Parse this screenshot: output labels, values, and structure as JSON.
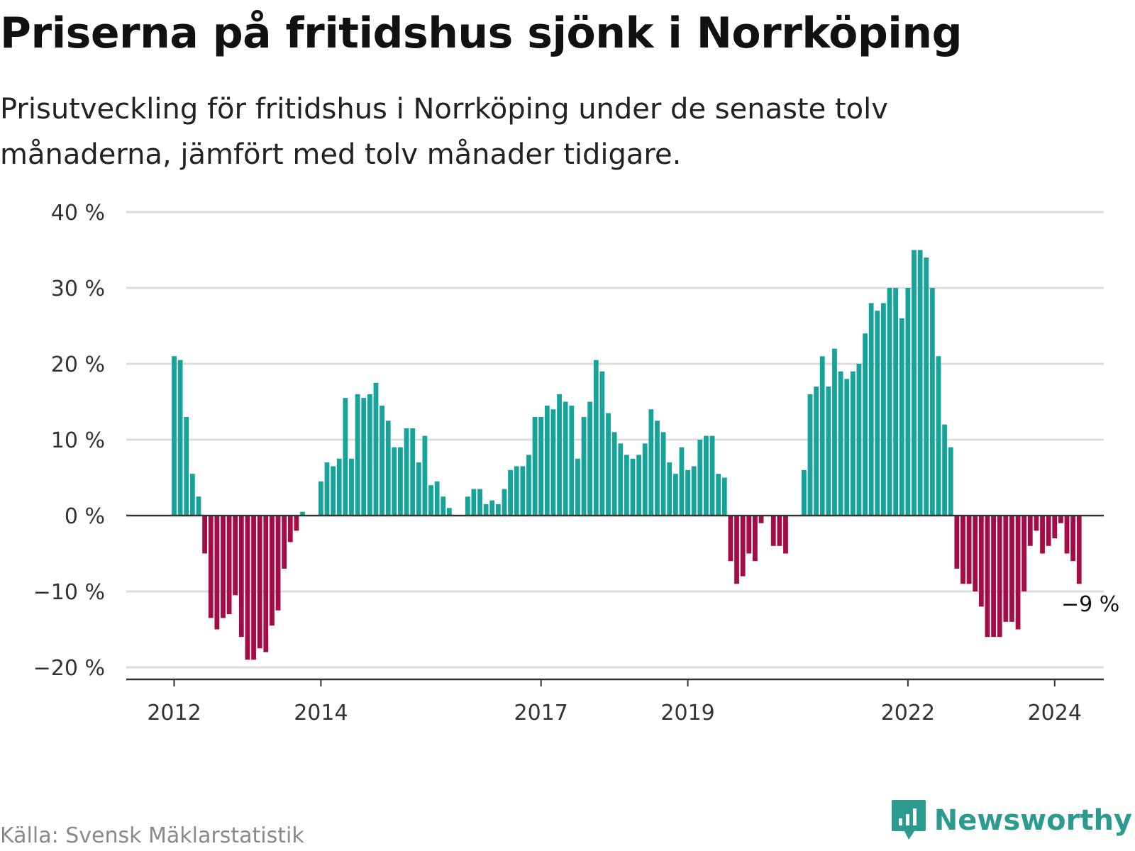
{
  "title": "Priserna på fritidshus sjönk i Norrköping",
  "subtitle": "Prisutveckling för fritidshus i Norrköping under de senaste tolv månaderna, jämfört med tolv månader tidigare.",
  "source": "Källa: Svensk Mäklarstatistik",
  "logo_text": "Newsworthy",
  "colors": {
    "positive": "#16a39a",
    "negative": "#a50b45",
    "grid": "#dcdcdc",
    "axis": "#333333",
    "brand": "#2b9a8f"
  },
  "chart_data": {
    "type": "bar",
    "title": "Priserna på fritidshus sjönk i Norrköping",
    "xlabel": "",
    "ylabel": "",
    "ylim": [
      -22,
      40
    ],
    "y_ticks": [
      40,
      30,
      20,
      10,
      0,
      -10,
      -20
    ],
    "y_tick_labels": [
      "40 %",
      "30 %",
      "20 %",
      "10 %",
      "0 %",
      "−10 %",
      "−20 %"
    ],
    "x_ticks": [
      {
        "index": 0,
        "label": "2012"
      },
      {
        "index": 24,
        "label": "2014"
      },
      {
        "index": 60,
        "label": "2017"
      },
      {
        "index": 84,
        "label": "2019"
      },
      {
        "index": 120,
        "label": "2022"
      },
      {
        "index": 144,
        "label": "2024"
      }
    ],
    "annotation": {
      "index": 146,
      "text": "−9 %"
    },
    "values": [
      21,
      20.5,
      13,
      5.5,
      2.5,
      -5,
      -13.5,
      -15,
      -13.5,
      -13,
      -10.5,
      -16,
      -19,
      -19,
      -17.5,
      -18,
      -14.5,
      -12.5,
      -7,
      -3.5,
      -2,
      0.5,
      null,
      null,
      4.5,
      7,
      6.5,
      7.5,
      15.5,
      7.5,
      16,
      15.5,
      16,
      17.5,
      14.5,
      12.5,
      9,
      9,
      11.5,
      11.5,
      7,
      10.5,
      4,
      4.5,
      2.5,
      1,
      null,
      null,
      2.5,
      3.5,
      3.5,
      1.5,
      2,
      1.5,
      3.5,
      6,
      6.5,
      6.5,
      8,
      13,
      13,
      14.5,
      14,
      16,
      15,
      14.5,
      7.5,
      13,
      15,
      20.5,
      19,
      13.5,
      11,
      9.5,
      8,
      7.5,
      8,
      9.5,
      14,
      12.5,
      11,
      7,
      5.5,
      9,
      6,
      6.5,
      10,
      10.5,
      10.5,
      5.5,
      5,
      -6,
      -9,
      -8,
      -5,
      -6,
      -1,
      null,
      -4,
      -4,
      -5,
      null,
      null,
      6,
      16,
      17,
      21,
      17,
      22,
      19,
      18,
      19,
      20,
      24,
      28,
      27,
      28,
      30,
      30,
      26,
      30,
      35,
      35,
      34,
      30,
      21,
      12,
      9,
      -7,
      -9,
      -9,
      -10,
      -12,
      -16,
      -16,
      -16,
      -14,
      -14,
      -15,
      -10,
      -4,
      -2,
      -5,
      -4,
      -3,
      -1,
      -5,
      -6,
      -9
    ]
  }
}
